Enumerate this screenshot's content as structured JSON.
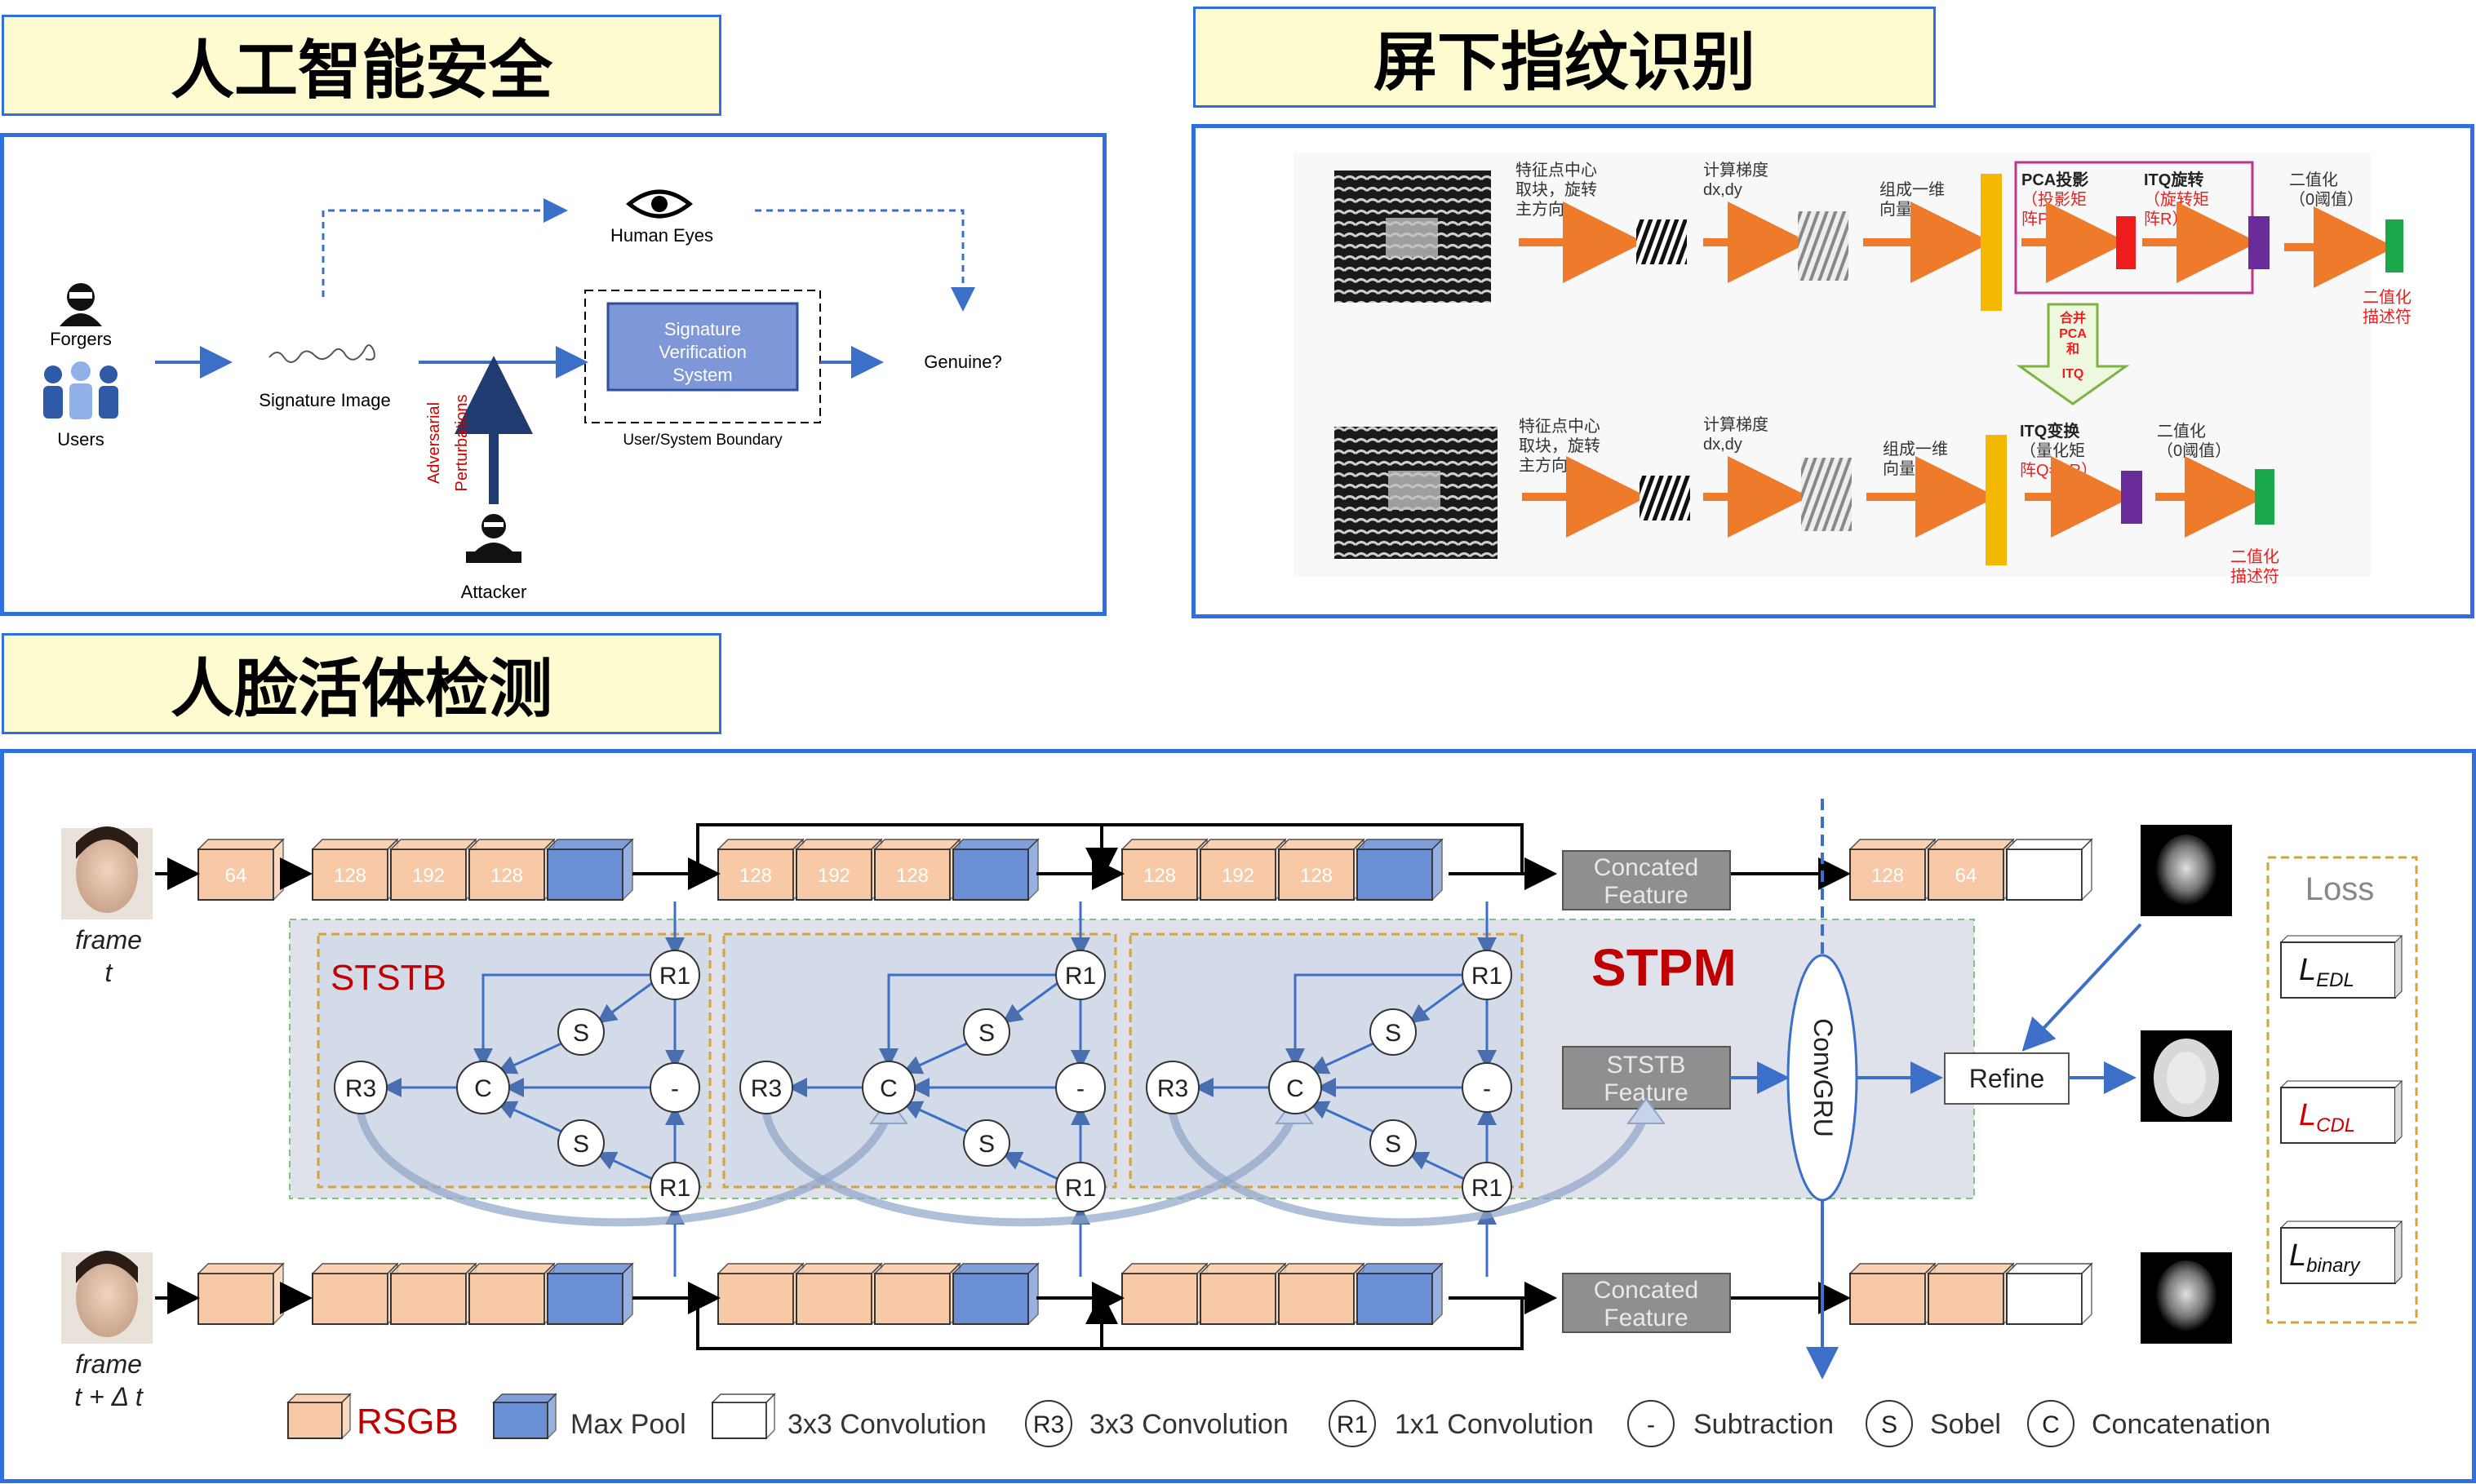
{
  "headers": {
    "ai_security": "人工智能安全",
    "fingerprint": "屏下指纹识别",
    "face_liveness": "人脸活体检测"
  },
  "sig_panel": {
    "forgers": "Forgers",
    "users": "Users",
    "signature_image": "Signature Image",
    "human_eyes": "Human Eyes",
    "sv_system_line1": "Signature",
    "sv_system_line2": "Verification",
    "sv_system_line3": "System",
    "boundary": "User/System Boundary",
    "genuine": "Genuine?",
    "adversarial": "Adversarial",
    "perturbations": "Perturbations",
    "attacker": "Attacker"
  },
  "fp_panel": {
    "row1_step1_l1": "特征点中心",
    "row1_step1_l2": "取块，旋转",
    "row1_step1_l3": "主方向",
    "row1_grad_l1": "计算梯度",
    "row1_grad_l2": "dx,dy",
    "row1_vec_l1": "组成一维",
    "row1_vec_l2": "向量",
    "pca_l1": "PCA投影",
    "pca_l2": "（投影矩",
    "pca_l3": "阵P）",
    "itq_l1": "ITQ旋转",
    "itq_l2": "（旋转矩",
    "itq_l3": "阵R）",
    "bin_l1": "二值化",
    "bin_l2": "（0阈值）",
    "desc_l1": "二值化",
    "desc_l2": "描述符",
    "merge_l1": "合并",
    "merge_l2": "PCA",
    "merge_l3": "和",
    "merge_l4": "ITQ",
    "row2_step1_l1": "特征点中心",
    "row2_step1_l2": "取块，旋转",
    "row2_step1_l3": "主方向",
    "row2_grad_l1": "计算梯度",
    "row2_grad_l2": "dx,dy",
    "row2_vec_l1": "组成一维",
    "row2_vec_l2": "向量",
    "itq2_l1": "ITQ变换",
    "itq2_l2": "（量化矩",
    "itq2_l3": "阵Q=PR）",
    "bin2_l1": "二值化",
    "bin2_l2": "（0阈值）",
    "desc2_l1": "二值化",
    "desc2_l2": "描述符",
    "colors": {
      "orange": "#ee7b2c",
      "yellow": "#f5b800",
      "red": "#ee1c1c",
      "purple": "#6a2c9a",
      "green": "#1aa84a",
      "pink": "#c0358a"
    }
  },
  "face_panel": {
    "frame_t_l1": "frame",
    "frame_t_l2": "t",
    "frame_dt_l1": "frame",
    "frame_dt_l2": "t + Δ t",
    "top_blocks_1": [
      "64"
    ],
    "top_blocks_2": [
      "128",
      "192",
      "128"
    ],
    "top_blocks_3": [
      "128",
      "192",
      "128"
    ],
    "top_blocks_4": [
      "128",
      "192",
      "128"
    ],
    "out_blocks": [
      "128",
      "64"
    ],
    "concated_l1": "Concated",
    "concated_l2": "Feature",
    "ststb_label": "STSTB",
    "stpm_label": "STPM",
    "ststb_feature_l1": "STSTB",
    "ststb_feature_l2": "Feature",
    "convgru": "ConvGRU",
    "refine": "Refine",
    "loss_title": "Loss",
    "node_r1": "R1",
    "node_r3": "R3",
    "node_s": "S",
    "node_c": "C",
    "node_minus": "-",
    "loss_edl": "EDL",
    "loss_cdl": "CDL",
    "loss_binary": "binary",
    "loss_prefix": "L",
    "legend": {
      "rsgb": "RSGB",
      "maxpool": "Max Pool",
      "conv3": "3x3 Convolution",
      "r3": "R3",
      "r3_text": "3x3 Convolution",
      "r1": "R1",
      "r1_text": "1x1 Convolution",
      "minus": "-",
      "subtraction": "Subtraction",
      "s": "S",
      "sobel": "Sobel",
      "c": "C",
      "concatenation": "Concatenation"
    },
    "colors": {
      "rsgb": "#f8c9a6",
      "maxpool": "#6b8fd4",
      "stpm_red": "#c00000",
      "arrow_blue": "#3c6fc8"
    }
  }
}
